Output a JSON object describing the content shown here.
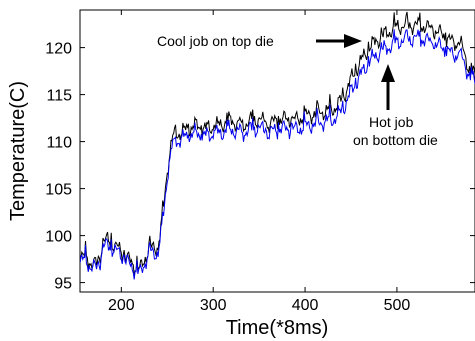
{
  "chart_data": {
    "type": "line",
    "title": "",
    "xlabel": "Time(*8ms)",
    "ylabel": "Temperature(C)",
    "xlim": [
      155,
      585
    ],
    "ylim": [
      94,
      124
    ],
    "xticks": [
      200,
      300,
      400,
      500
    ],
    "yticks": [
      95,
      100,
      105,
      110,
      115,
      120
    ],
    "grid": false,
    "series": [
      {
        "name": "",
        "color": "#000000",
        "x": [
          155,
          165,
          175,
          180,
          190,
          200,
          210,
          220,
          230,
          240,
          245,
          250,
          255,
          260,
          270,
          280,
          290,
          300,
          310,
          320,
          330,
          340,
          350,
          360,
          370,
          380,
          390,
          400,
          410,
          420,
          430,
          440,
          450,
          460,
          470,
          480,
          490,
          500,
          510,
          520,
          530,
          540,
          550,
          560,
          570,
          580,
          585
        ],
        "y": [
          98.0,
          97.3,
          96.8,
          99.6,
          99.2,
          98.3,
          97.2,
          96.3,
          98.6,
          98.8,
          102.0,
          107.0,
          110.2,
          110.8,
          111.2,
          111.7,
          111.4,
          111.5,
          111.9,
          112.3,
          111.6,
          112.2,
          112.4,
          111.8,
          112.3,
          112.4,
          112.3,
          112.7,
          113.0,
          113.2,
          113.4,
          114.4,
          116.6,
          118.4,
          120.0,
          120.9,
          121.6,
          122.2,
          122.4,
          122.4,
          122.3,
          121.8,
          121.4,
          120.6,
          120.3,
          117.4,
          117.0
        ]
      },
      {
        "name": "",
        "color": "#0000ee",
        "x": [
          155,
          165,
          175,
          180,
          190,
          200,
          210,
          220,
          230,
          240,
          245,
          250,
          255,
          260,
          270,
          280,
          290,
          300,
          310,
          320,
          330,
          340,
          350,
          360,
          370,
          380,
          390,
          400,
          410,
          420,
          430,
          440,
          450,
          460,
          470,
          480,
          490,
          500,
          510,
          520,
          530,
          540,
          550,
          560,
          570,
          580,
          585
        ],
        "y": [
          97.6,
          96.9,
          96.4,
          99.0,
          98.7,
          97.9,
          96.8,
          95.9,
          98.1,
          98.2,
          101.2,
          106.4,
          109.4,
          110.0,
          110.5,
          110.9,
          110.6,
          110.8,
          111.0,
          111.3,
          110.8,
          111.3,
          111.5,
          110.9,
          111.3,
          111.4,
          111.3,
          111.6,
          111.9,
          112.1,
          112.3,
          113.2,
          115.3,
          117.0,
          118.5,
          119.4,
          120.0,
          120.6,
          120.9,
          121.0,
          120.9,
          120.4,
          120.0,
          119.3,
          119.1,
          116.8,
          116.4
        ]
      }
    ],
    "annotations": [
      {
        "text": "Cool job on top die",
        "arrow": "right",
        "target_x": 480,
        "target_y": 122.4
      },
      {
        "text_lines": [
          "Hot job",
          "on bottom die"
        ],
        "arrow": "up",
        "target_x": 480,
        "target_y": 120.8
      }
    ]
  }
}
